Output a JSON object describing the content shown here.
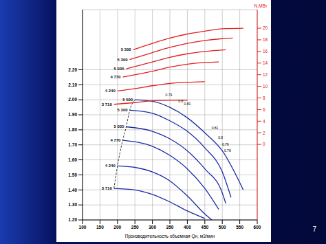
{
  "chart_data": {
    "type": "line",
    "x_label": "Производительность объемная Qн, м3/мин",
    "y2_label": "N,МВт",
    "grid": true,
    "xlim": [
      100,
      600
    ],
    "xticks": [
      100,
      150,
      200,
      250,
      300,
      350,
      400,
      450,
      500,
      550,
      600
    ],
    "ylim": [
      1.2,
      2.6
    ],
    "yticks": [
      {
        "value": 1.2,
        "label": "1.20"
      },
      {
        "value": 1.3,
        "label": "1.30"
      },
      {
        "value": 1.4,
        "label": "1.40"
      },
      {
        "value": 1.5,
        "label": "1.50"
      },
      {
        "value": 1.6,
        "label": "1.60"
      },
      {
        "value": 1.7,
        "label": "1.70"
      },
      {
        "value": 1.8,
        "label": "1.80"
      },
      {
        "value": 1.9,
        "label": "1.90"
      },
      {
        "value": 2.0,
        "label": "2.00"
      },
      {
        "value": 2.1,
        "label": "2.10"
      },
      {
        "value": 2.2,
        "label": "2.20"
      }
    ],
    "y2lim": [
      -13,
      23.2
    ],
    "y2ticks": [
      0,
      2,
      4,
      6,
      8,
      10,
      12,
      14,
      16,
      18,
      20
    ],
    "series": [
      {
        "name": "5 500",
        "color": "#1c2ca8",
        "axis": "y",
        "x": [
          250,
          300,
          350,
          400,
          450,
          500,
          560
        ],
        "values": [
          2.0,
          1.99,
          1.95,
          1.88,
          1.78,
          1.66,
          1.4
        ]
      },
      {
        "name": "5 300",
        "color": "#1c2ca8",
        "axis": "y",
        "x": [
          235,
          300,
          350,
          400,
          450,
          500,
          525
        ],
        "values": [
          1.93,
          1.91,
          1.86,
          1.79,
          1.68,
          1.52,
          1.35
        ]
      },
      {
        "name": "5 035",
        "color": "#1c2ca8",
        "axis": "y",
        "x": [
          225,
          300,
          350,
          400,
          450,
          500,
          510
        ],
        "values": [
          1.82,
          1.79,
          1.74,
          1.66,
          1.54,
          1.38,
          1.31
        ]
      },
      {
        "name": "4 770",
        "color": "#1c2ca8",
        "axis": "y",
        "x": [
          215,
          300,
          350,
          400,
          450,
          490
        ],
        "values": [
          1.73,
          1.69,
          1.63,
          1.54,
          1.41,
          1.27
        ]
      },
      {
        "name": "4 240",
        "color": "#1c2ca8",
        "axis": "y",
        "x": [
          200,
          250,
          300,
          350,
          400,
          450,
          470
        ],
        "values": [
          1.56,
          1.55,
          1.52,
          1.46,
          1.36,
          1.24,
          1.2
        ]
      },
      {
        "name": "3 710",
        "color": "#1c2ca8",
        "axis": "y",
        "x": [
          190,
          250,
          300,
          350,
          400,
          450
        ],
        "values": [
          1.41,
          1.4,
          1.37,
          1.32,
          1.26,
          1.21
        ]
      },
      {
        "color": "#000000",
        "axis": "y",
        "line_style": "dashed",
        "x": [
          190,
          200,
          215,
          225,
          235,
          250
        ],
        "values": [
          1.41,
          1.56,
          1.73,
          1.82,
          1.93,
          2.0
        ]
      },
      {
        "name": "5 500",
        "color": "#e02020",
        "axis": "y2",
        "x": [
          245,
          300,
          350,
          400,
          450,
          500,
          560
        ],
        "values": [
          16.3,
          17.4,
          18.3,
          19.0,
          19.5,
          19.9,
          20.0
        ]
      },
      {
        "name": "5 300",
        "color": "#e02020",
        "axis": "y2",
        "x": [
          235,
          300,
          350,
          400,
          450,
          500,
          530
        ],
        "values": [
          14.6,
          15.8,
          16.7,
          17.4,
          17.9,
          18.2,
          18.3
        ]
      },
      {
        "name": "5 035",
        "color": "#e02020",
        "axis": "y2",
        "x": [
          225,
          300,
          350,
          400,
          450,
          510
        ],
        "values": [
          13.0,
          14.2,
          15.0,
          15.6,
          16.0,
          16.3
        ]
      },
      {
        "name": "4 770",
        "color": "#e02020",
        "axis": "y2",
        "x": [
          215,
          300,
          350,
          400,
          450,
          490
        ],
        "values": [
          11.6,
          12.6,
          13.3,
          13.8,
          14.1,
          14.2
        ]
      },
      {
        "name": "4 240",
        "color": "#e02020",
        "axis": "y2",
        "x": [
          200,
          250,
          300,
          350,
          400,
          450
        ],
        "values": [
          9.2,
          9.6,
          10.1,
          10.5,
          10.7,
          10.8
        ]
      },
      {
        "name": "3 710",
        "color": "#e02020",
        "axis": "y2",
        "x": [
          190,
          250,
          300,
          350,
          400
        ],
        "values": [
          6.9,
          7.2,
          7.5,
          7.6,
          7.6
        ]
      }
    ],
    "annotations": [
      {
        "text": "0.79",
        "x": 347,
        "y": 2.03
      },
      {
        "text": "0.8",
        "x": 381,
        "y": 1.99
      },
      {
        "text": "0.81",
        "x": 400,
        "y": 1.97
      },
      {
        "text": "0.81",
        "x": 479,
        "y": 1.81
      },
      {
        "text": "0.8",
        "x": 495,
        "y": 1.75
      },
      {
        "text": "0.79",
        "x": 509,
        "y": 1.7
      },
      {
        "text": "0.78",
        "x": 515,
        "y": 1.66
      }
    ]
  },
  "slide": {
    "page_number": "7"
  }
}
